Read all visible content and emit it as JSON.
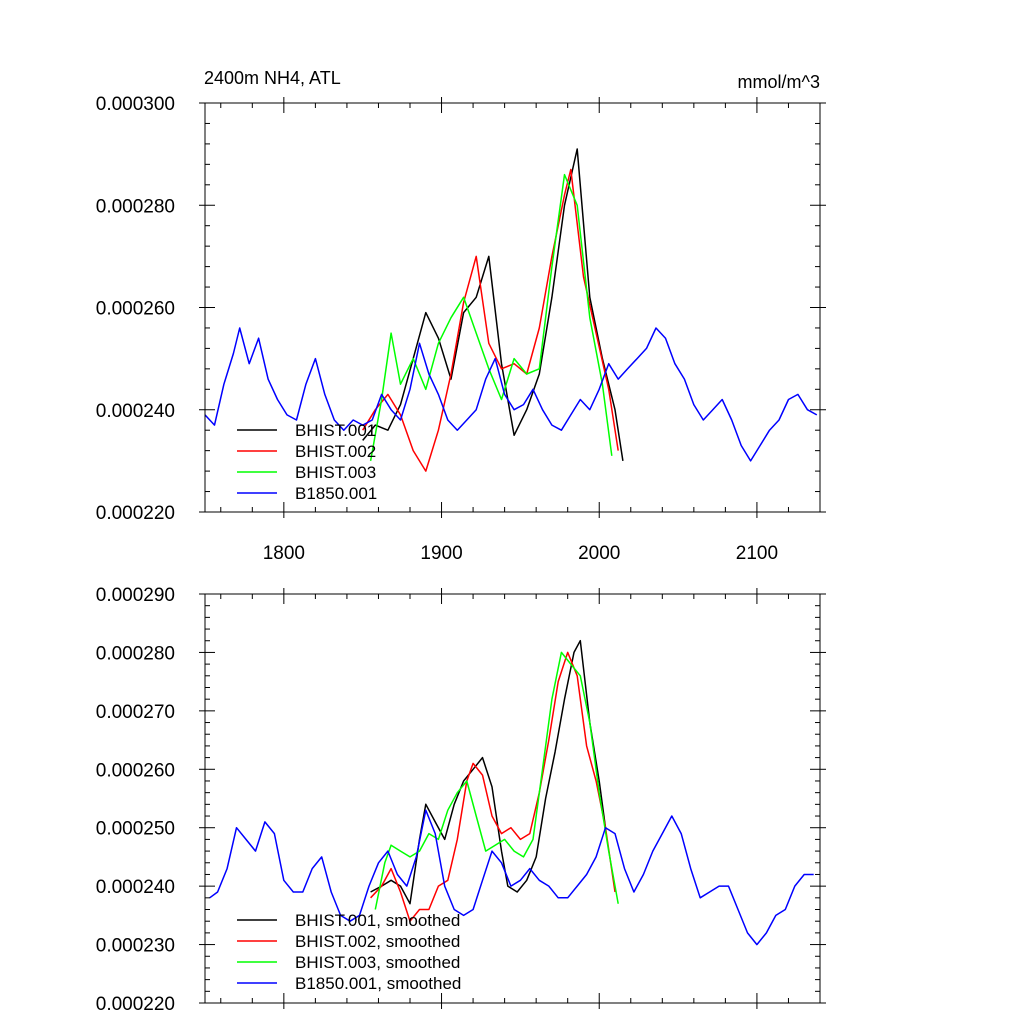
{
  "chart_data": [
    {
      "type": "line",
      "title": "2400m NH4, ATL",
      "units": "mmol/m^3",
      "xlim": [
        1750,
        2140
      ],
      "ylim": [
        0.00022,
        0.0003
      ],
      "xticks": [
        1800,
        1900,
        2000,
        2100
      ],
      "xtick_labels": [
        "1800",
        "1900",
        "2000",
        "2100"
      ],
      "yticks": [
        0.00022,
        0.00024,
        0.00026,
        0.00028,
        0.0003
      ],
      "ytick_labels": [
        "0.000220",
        "0.000240",
        "0.000260",
        "0.000280",
        "0.000300"
      ],
      "legend_placement": "bottom-left",
      "series": [
        {
          "name": "BHIST.001",
          "color": "#000000",
          "x": [
            1850,
            1858,
            1866,
            1874,
            1882,
            1890,
            1898,
            1906,
            1914,
            1922,
            1930,
            1938,
            1946,
            1954,
            1962,
            1970,
            1978,
            1986,
            1994,
            2002,
            2010,
            2015
          ],
          "values": [
            0.000234,
            0.000237,
            0.000236,
            0.000241,
            0.00025,
            0.000259,
            0.000254,
            0.000246,
            0.000259,
            0.000262,
            0.00027,
            0.000249,
            0.000235,
            0.00024,
            0.000247,
            0.000262,
            0.00028,
            0.000291,
            0.000262,
            0.00025,
            0.00024,
            0.00023
          ]
        },
        {
          "name": "BHIST.002",
          "color": "#ff0000",
          "x": [
            1850,
            1858,
            1866,
            1874,
            1882,
            1890,
            1898,
            1906,
            1914,
            1922,
            1930,
            1938,
            1946,
            1954,
            1962,
            1970,
            1978,
            1982,
            1990,
            1998,
            2006,
            2012
          ],
          "values": [
            0.000236,
            0.00024,
            0.000243,
            0.000239,
            0.000232,
            0.000228,
            0.000236,
            0.000247,
            0.000261,
            0.00027,
            0.000253,
            0.000248,
            0.000249,
            0.000247,
            0.000256,
            0.00027,
            0.000282,
            0.000287,
            0.000266,
            0.000255,
            0.000244,
            0.000232
          ]
        },
        {
          "name": "BHIST.003",
          "color": "#00ff00",
          "x": [
            1855,
            1862,
            1868,
            1874,
            1882,
            1890,
            1898,
            1906,
            1914,
            1922,
            1930,
            1938,
            1946,
            1954,
            1962,
            1970,
            1978,
            1986,
            1994,
            2002,
            2008
          ],
          "values": [
            0.00023,
            0.000242,
            0.000255,
            0.000245,
            0.00025,
            0.000244,
            0.000253,
            0.000258,
            0.000262,
            0.000255,
            0.000248,
            0.000242,
            0.00025,
            0.000247,
            0.000248,
            0.000268,
            0.000286,
            0.00028,
            0.000258,
            0.000245,
            0.000231
          ]
        },
        {
          "name": "B1850.001",
          "color": "#0000ff",
          "x": [
            1750,
            1756,
            1762,
            1768,
            1772,
            1778,
            1784,
            1790,
            1796,
            1802,
            1808,
            1814,
            1820,
            1826,
            1832,
            1838,
            1844,
            1850,
            1856,
            1862,
            1868,
            1874,
            1880,
            1886,
            1892,
            1898,
            1904,
            1910,
            1916,
            1922,
            1928,
            1934,
            1940,
            1946,
            1952,
            1958,
            1964,
            1970,
            1976,
            1982,
            1988,
            1994,
            2000,
            2006,
            2012,
            2018,
            2024,
            2030,
            2036,
            2042,
            2048,
            2054,
            2060,
            2066,
            2072,
            2078,
            2084,
            2090,
            2096,
            2102,
            2108,
            2114,
            2120,
            2126,
            2132,
            2138
          ],
          "values": [
            0.000239,
            0.000237,
            0.000245,
            0.000251,
            0.000256,
            0.000249,
            0.000254,
            0.000246,
            0.000242,
            0.000239,
            0.000238,
            0.000245,
            0.00025,
            0.000243,
            0.000238,
            0.000236,
            0.000238,
            0.000237,
            0.000238,
            0.000243,
            0.00024,
            0.000238,
            0.000244,
            0.000253,
            0.000247,
            0.000243,
            0.000238,
            0.000236,
            0.000238,
            0.00024,
            0.000246,
            0.00025,
            0.000243,
            0.00024,
            0.000241,
            0.000244,
            0.00024,
            0.000237,
            0.000236,
            0.000239,
            0.000242,
            0.00024,
            0.000244,
            0.000249,
            0.000246,
            0.000248,
            0.00025,
            0.000252,
            0.000256,
            0.000254,
            0.000249,
            0.000246,
            0.000241,
            0.000238,
            0.00024,
            0.000242,
            0.000238,
            0.000233,
            0.00023,
            0.000233,
            0.000236,
            0.000238,
            0.000242,
            0.000243,
            0.00024,
            0.000239
          ]
        }
      ]
    },
    {
      "type": "line",
      "xlim": [
        1750,
        2140
      ],
      "ylim": [
        0.00022,
        0.00029
      ],
      "xticks": [
        1800,
        1900,
        2000,
        2100
      ],
      "yticks": [
        0.00022,
        0.00023,
        0.00024,
        0.00025,
        0.00026,
        0.00027,
        0.00028,
        0.00029
      ],
      "ytick_labels": [
        "0.000220",
        "0.000230",
        "0.000240",
        "0.000250",
        "0.000260",
        "0.000270",
        "0.000280",
        "0.000290"
      ],
      "legend_placement": "bottom-left",
      "series": [
        {
          "name": "BHIST.001, smoothed",
          "color": "#000000",
          "x": [
            1855,
            1862,
            1868,
            1874,
            1880,
            1886,
            1890,
            1896,
            1902,
            1908,
            1914,
            1920,
            1926,
            1932,
            1938,
            1942,
            1948,
            1954,
            1960,
            1966,
            1972,
            1978,
            1984,
            1988,
            1994,
            2000,
            2004
          ],
          "values": [
            0.000239,
            0.00024,
            0.000241,
            0.00024,
            0.000237,
            0.000248,
            0.000254,
            0.000251,
            0.000248,
            0.000254,
            0.000258,
            0.00026,
            0.000262,
            0.000257,
            0.000246,
            0.00024,
            0.000239,
            0.000241,
            0.000245,
            0.000255,
            0.000263,
            0.000272,
            0.00028,
            0.000282,
            0.000268,
            0.000258,
            0.00025
          ]
        },
        {
          "name": "BHIST.002, smoothed",
          "color": "#ff0000",
          "x": [
            1855,
            1862,
            1868,
            1874,
            1880,
            1886,
            1892,
            1898,
            1904,
            1910,
            1916,
            1920,
            1926,
            1932,
            1938,
            1944,
            1950,
            1956,
            1962,
            1968,
            1974,
            1980,
            1986,
            1992,
            1998,
            2004,
            2010
          ],
          "values": [
            0.000238,
            0.00024,
            0.000243,
            0.000239,
            0.000234,
            0.000236,
            0.000236,
            0.00024,
            0.000241,
            0.000248,
            0.000258,
            0.000261,
            0.000259,
            0.000252,
            0.000249,
            0.00025,
            0.000248,
            0.000249,
            0.000256,
            0.000265,
            0.000275,
            0.00028,
            0.000276,
            0.000264,
            0.000258,
            0.00025,
            0.000239
          ]
        },
        {
          "name": "BHIST.003, smoothed",
          "color": "#00ff00",
          "x": [
            1858,
            1864,
            1868,
            1874,
            1880,
            1886,
            1892,
            1898,
            1904,
            1910,
            1916,
            1922,
            1928,
            1934,
            1940,
            1946,
            1952,
            1958,
            1964,
            1970,
            1976,
            1982,
            1988,
            1994,
            2000,
            2006,
            2012
          ],
          "values": [
            0.000236,
            0.000244,
            0.000247,
            0.000246,
            0.000245,
            0.000246,
            0.000249,
            0.000248,
            0.000253,
            0.000256,
            0.000258,
            0.000252,
            0.000246,
            0.000247,
            0.000248,
            0.000246,
            0.000245,
            0.000248,
            0.00026,
            0.000272,
            0.00028,
            0.000278,
            0.000276,
            0.000268,
            0.000256,
            0.000246,
            0.000237
          ]
        },
        {
          "name": "B1850.001, smoothed",
          "color": "#0000ff",
          "x": [
            1753,
            1758,
            1764,
            1770,
            1776,
            1782,
            1788,
            1794,
            1800,
            1806,
            1812,
            1818,
            1824,
            1830,
            1836,
            1842,
            1848,
            1854,
            1860,
            1866,
            1872,
            1878,
            1884,
            1890,
            1896,
            1902,
            1908,
            1914,
            1920,
            1926,
            1932,
            1938,
            1944,
            1950,
            1956,
            1962,
            1968,
            1974,
            1980,
            1986,
            1992,
            1998,
            2004,
            2010,
            2016,
            2022,
            2028,
            2034,
            2040,
            2046,
            2052,
            2058,
            2064,
            2070,
            2076,
            2082,
            2088,
            2094,
            2100,
            2106,
            2112,
            2118,
            2124,
            2130,
            2136
          ],
          "values": [
            0.000238,
            0.000239,
            0.000243,
            0.00025,
            0.000248,
            0.000246,
            0.000251,
            0.000249,
            0.000241,
            0.000239,
            0.000239,
            0.000243,
            0.000245,
            0.000239,
            0.000235,
            0.000234,
            0.000235,
            0.00024,
            0.000244,
            0.000246,
            0.000242,
            0.00024,
            0.000245,
            0.000253,
            0.000249,
            0.00024,
            0.000236,
            0.000235,
            0.000236,
            0.000241,
            0.000246,
            0.000244,
            0.00024,
            0.000241,
            0.000243,
            0.000241,
            0.00024,
            0.000238,
            0.000238,
            0.00024,
            0.000242,
            0.000245,
            0.00025,
            0.000249,
            0.000243,
            0.000239,
            0.000242,
            0.000246,
            0.000249,
            0.000252,
            0.000249,
            0.000243,
            0.000238,
            0.000239,
            0.00024,
            0.00024,
            0.000236,
            0.000232,
            0.00023,
            0.000232,
            0.000235,
            0.000236,
            0.00024,
            0.000242,
            0.000242
          ]
        }
      ]
    }
  ]
}
